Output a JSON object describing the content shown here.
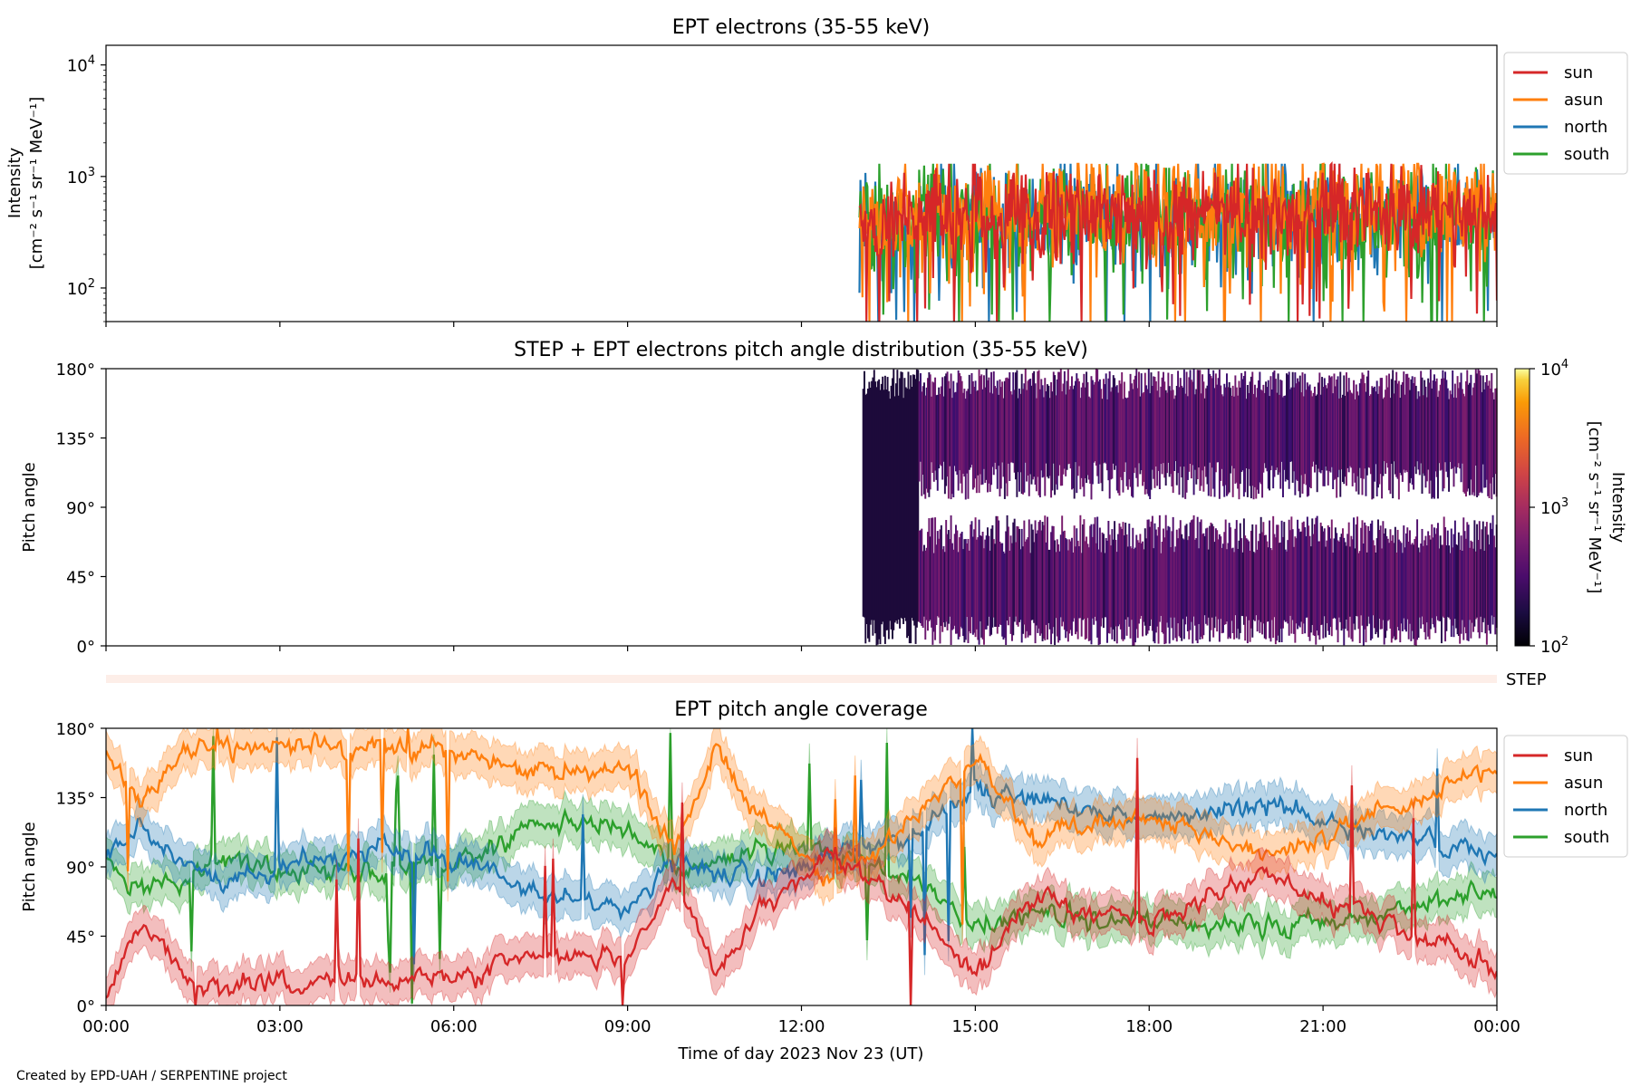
{
  "figure": {
    "xlabel": "Time of day 2023 Nov 23 (UT)",
    "credit": "Created by EPD-UAH / SERPENTINE project",
    "x_ticks": [
      "00:00",
      "03:00",
      "06:00",
      "09:00",
      "12:00",
      "15:00",
      "18:00",
      "21:00",
      "00:00"
    ],
    "step_label": "STEP"
  },
  "chart_data": [
    {
      "type": "line",
      "title": "EPT electrons (35-55 keV)",
      "ylabel_line1": "Intensity",
      "ylabel_line2": "[cm⁻² s⁻¹ sr⁻¹ MeV⁻¹]",
      "yscale": "log",
      "ylim": [
        50,
        15000
      ],
      "y_ticks": [
        {
          "value": 100,
          "base": "10",
          "exp": "2"
        },
        {
          "value": 1000,
          "base": "10",
          "exp": "3"
        },
        {
          "value": 10000,
          "base": "10",
          "exp": "4"
        }
      ],
      "xlim_hours": [
        0,
        24
      ],
      "data_start_hours": 13.0,
      "series": [
        {
          "name": "sun",
          "color": "#d62728",
          "typical": 480,
          "spread": 0.28
        },
        {
          "name": "asun",
          "color": "#ff7f0e",
          "typical": 500,
          "spread": 0.33
        },
        {
          "name": "north",
          "color": "#1f77b4",
          "typical": 420,
          "spread": 0.34
        },
        {
          "name": "south",
          "color": "#2ca02c",
          "typical": 440,
          "spread": 0.34
        }
      ],
      "legend_loc": "upper right, outside"
    },
    {
      "type": "heatmap",
      "title": "STEP + EPT electrons pitch angle distribution (35-55 keV)",
      "ylabel": "Pitch angle",
      "ylim": [
        0,
        180
      ],
      "y_ticks": [
        "0°",
        "45°",
        "90°",
        "135°",
        "180°"
      ],
      "xlim_hours": [
        0,
        24
      ],
      "data_start_hours": 13.05,
      "colorbar": {
        "label_line1": "Intensity",
        "label_line2": "[cm⁻² s⁻¹ sr⁻¹ MeV⁻¹]",
        "scale": "log",
        "range": [
          100,
          10000
        ],
        "ticks": [
          {
            "value": 100,
            "base": "10",
            "exp": "2"
          },
          {
            "value": 1000,
            "base": "10",
            "exp": "3"
          },
          {
            "value": 10000,
            "base": "10",
            "exp": "4"
          }
        ],
        "colormap": "inferno",
        "typical_intensity": 450
      }
    },
    {
      "type": "line",
      "title": "EPT pitch angle coverage",
      "ylabel": "Pitch angle",
      "ylim": [
        0,
        180
      ],
      "y_ticks": [
        "0°",
        "45°",
        "90°",
        "135°",
        "180°"
      ],
      "xlim_hours": [
        0,
        24
      ],
      "shaded_band": "mean ± aperture",
      "series": [
        {
          "name": "sun",
          "color": "#d62728",
          "keys": [
            [
              0,
              5
            ],
            [
              0.5,
              50
            ],
            [
              1,
              40
            ],
            [
              1.5,
              12
            ],
            [
              3,
              15
            ],
            [
              5,
              18
            ],
            [
              6.5,
              20
            ],
            [
              7.2,
              35
            ],
            [
              9,
              30
            ],
            [
              9.8,
              85
            ],
            [
              10.5,
              25
            ],
            [
              11.3,
              60
            ],
            [
              12.5,
              100
            ],
            [
              14,
              60
            ],
            [
              15,
              20
            ],
            [
              16,
              70
            ],
            [
              18,
              55
            ],
            [
              20,
              85
            ],
            [
              22,
              55
            ],
            [
              24,
              25
            ]
          ]
        },
        {
          "name": "asun",
          "color": "#ff7f0e",
          "keys": [
            [
              0,
              170
            ],
            [
              0.6,
              130
            ],
            [
              1,
              150
            ],
            [
              1.5,
              168
            ],
            [
              3,
              170
            ],
            [
              5,
              168
            ],
            [
              6.5,
              165
            ],
            [
              7.2,
              150
            ],
            [
              9,
              155
            ],
            [
              9.8,
              100
            ],
            [
              10.5,
              165
            ],
            [
              11.3,
              120
            ],
            [
              12.5,
              80
            ],
            [
              14,
              120
            ],
            [
              15,
              160
            ],
            [
              16,
              110
            ],
            [
              18,
              125
            ],
            [
              20,
              95
            ],
            [
              22,
              125
            ],
            [
              24,
              155
            ]
          ]
        },
        {
          "name": "north",
          "color": "#1f77b4",
          "keys": [
            [
              0,
              90
            ],
            [
              0.6,
              120
            ],
            [
              1.2,
              95
            ],
            [
              2,
              80
            ],
            [
              3,
              90
            ],
            [
              5,
              100
            ],
            [
              6.5,
              90
            ],
            [
              7.2,
              75
            ],
            [
              9,
              65
            ],
            [
              9.8,
              95
            ],
            [
              10.5,
              90
            ],
            [
              11.3,
              80
            ],
            [
              12.5,
              100
            ],
            [
              14,
              110
            ],
            [
              15,
              140
            ],
            [
              16,
              135
            ],
            [
              18,
              120
            ],
            [
              20,
              130
            ],
            [
              22,
              110
            ],
            [
              24,
              100
            ]
          ]
        },
        {
          "name": "south",
          "color": "#2ca02c",
          "keys": [
            [
              0,
              95
            ],
            [
              0.6,
              75
            ],
            [
              1.2,
              80
            ],
            [
              2,
              95
            ],
            [
              3,
              85
            ],
            [
              5,
              90
            ],
            [
              6.5,
              95
            ],
            [
              7.2,
              120
            ],
            [
              9,
              115
            ],
            [
              9.8,
              85
            ],
            [
              10.5,
              90
            ],
            [
              11.3,
              105
            ],
            [
              12.5,
              100
            ],
            [
              14,
              80
            ],
            [
              15,
              50
            ],
            [
              16,
              60
            ],
            [
              18,
              55
            ],
            [
              20,
              50
            ],
            [
              22,
              60
            ],
            [
              24,
              75
            ]
          ]
        }
      ],
      "legend_loc": "upper right, outside"
    }
  ]
}
